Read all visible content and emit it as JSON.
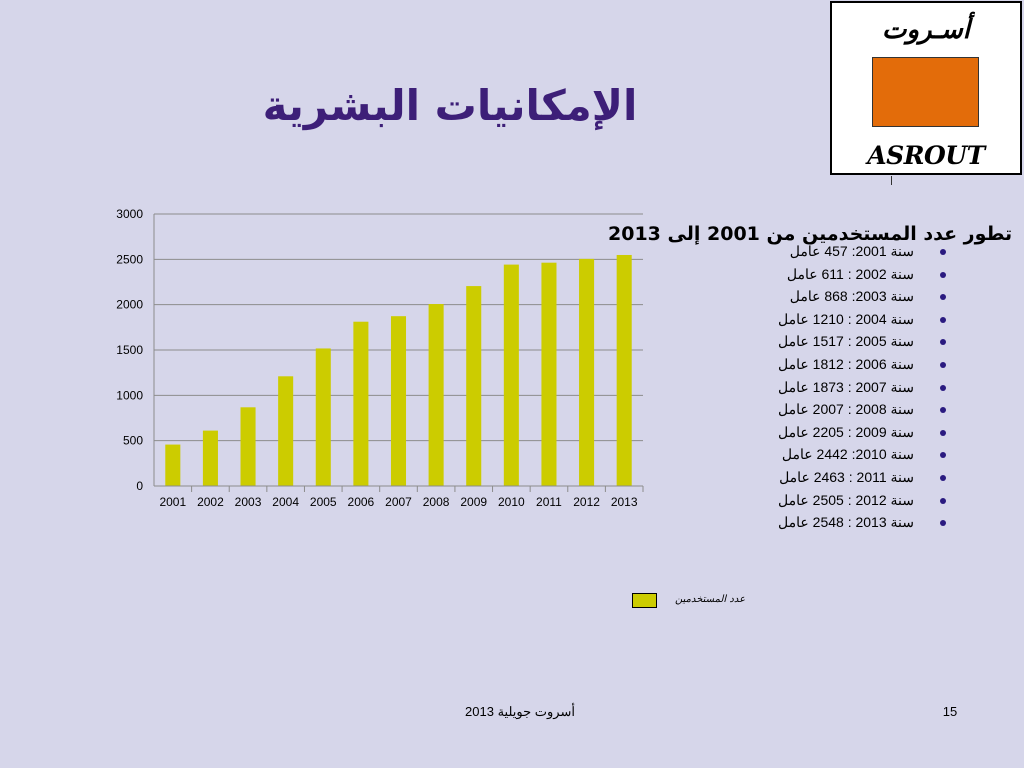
{
  "slide": {
    "title": "الإمكانيات البشرية",
    "page_number": "15",
    "footer": "أسروت جويلية 2013"
  },
  "logo": {
    "name_ar": "أسـروت",
    "name_en": "ASROUT",
    "square_color": "#e36c0a"
  },
  "chart_data": {
    "type": "bar",
    "title": "تطور عدد المستخدمين من 2001 إلى 2013",
    "categories": [
      "2001",
      "2002",
      "2003",
      "2004",
      "2005",
      "2006",
      "2007",
      "2008",
      "2009",
      "2010",
      "2011",
      "2012",
      "2013"
    ],
    "series": [
      {
        "name": "عدد المستخدمين",
        "values": [
          457,
          611,
          868,
          1210,
          1517,
          1812,
          1873,
          2007,
          2205,
          2442,
          2463,
          2505,
          2548
        ]
      }
    ],
    "ylim": [
      0,
      3000
    ],
    "yticks": [
      "0",
      "500",
      "1000",
      "1500",
      "2000",
      "2500",
      "3000"
    ],
    "grid": true,
    "legend_position": "bottom-right",
    "bar_color": "#cccc00"
  },
  "year_list": [
    "سنة 2001:  457 عامل",
    "سنة 2002 : 611 عامل",
    "سنة 2003: 868 عامل",
    "سنة 2004 : 1210 عامل",
    "سنة 2005 : 1517 عامل",
    "سنة  2006 : 1812 عامل",
    "سنة 2007 : 1873 عامل",
    "سنة 2008 : 2007 عامل",
    "سنة 2009 : 2205 عامل",
    "سنة 2010: 2442 عامل",
    "سنة 2011 : 2463 عامل",
    "سنة 2012 : 2505 عامل",
    "سنة 2013 : 2548 عامل"
  ]
}
